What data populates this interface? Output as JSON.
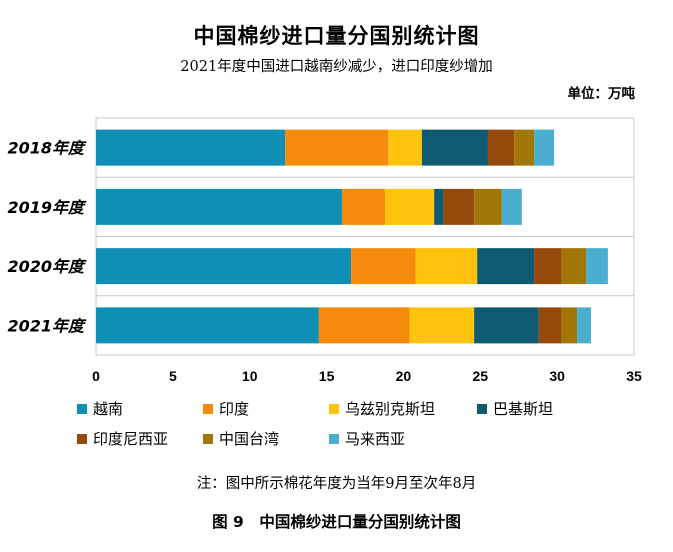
{
  "chart_data": {
    "type": "bar",
    "orientation": "horizontal",
    "stacked": true,
    "title": "中国棉纱进口量分国别统计图",
    "subtitle": "2021年度中国进口越南纱减少，进口印度纱增加",
    "unit": "单位：万吨",
    "categories": [
      "2018年度",
      "2019年度",
      "2020年度",
      "2021年度"
    ],
    "series": [
      {
        "name": "越南",
        "color": "#0f8fb5",
        "values": [
          12.3,
          16.0,
          16.6,
          14.5
        ]
      },
      {
        "name": "印度",
        "color": "#f58a0d",
        "values": [
          6.7,
          2.8,
          4.2,
          5.9
        ]
      },
      {
        "name": "乌兹别克斯坦",
        "color": "#ffc30e",
        "values": [
          2.2,
          3.2,
          4.0,
          4.2
        ]
      },
      {
        "name": "巴基斯坦",
        "color": "#0e5a73",
        "values": [
          4.3,
          0.6,
          3.7,
          4.2
        ]
      },
      {
        "name": "印度尼西亚",
        "color": "#954a0b",
        "values": [
          1.7,
          2.0,
          1.8,
          1.5
        ]
      },
      {
        "name": "中国台湾",
        "color": "#a37608",
        "values": [
          1.3,
          1.8,
          1.6,
          1.0
        ]
      },
      {
        "name": "马来西亚",
        "color": "#4aaed0",
        "values": [
          1.3,
          1.3,
          1.4,
          0.9
        ]
      }
    ],
    "xlim": [
      0,
      35
    ],
    "xticks": [
      0,
      5,
      10,
      15,
      20,
      25,
      30,
      35
    ],
    "grid": true,
    "legend_position": "bottom"
  },
  "note": "注：图中所示棉花年度为当年9月至次年8月",
  "caption": "图 9　中国棉纱进口量分国别统计图"
}
